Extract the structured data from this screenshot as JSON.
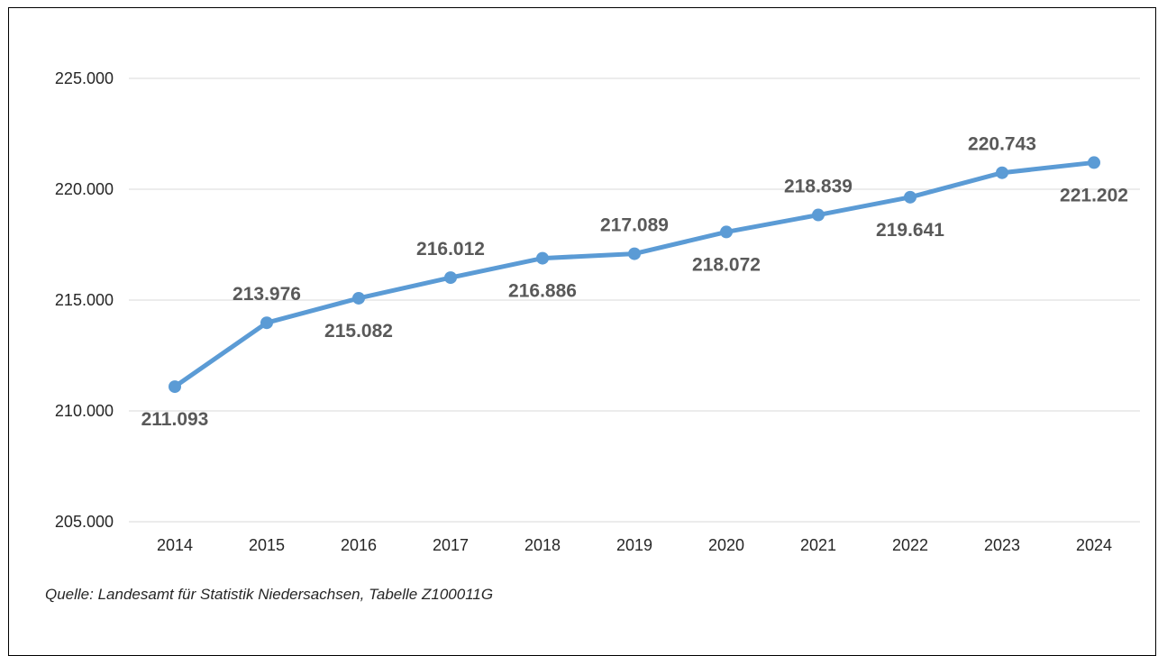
{
  "chart_data": {
    "type": "line",
    "categories": [
      "2014",
      "2015",
      "2016",
      "2017",
      "2018",
      "2019",
      "2020",
      "2021",
      "2022",
      "2023",
      "2024"
    ],
    "values": [
      211093,
      213976,
      215082,
      216012,
      216886,
      217089,
      218072,
      218839,
      219641,
      220743,
      221202
    ],
    "value_labels": [
      "211.093",
      "213.976",
      "215.082",
      "216.012",
      "216.886",
      "217.089",
      "218.072",
      "218.839",
      "219.641",
      "220.743",
      "221.202"
    ],
    "label_positions": [
      "below",
      "above",
      "below",
      "above",
      "below",
      "above",
      "below",
      "above",
      "below",
      "above",
      "below"
    ],
    "ylim": [
      205000,
      225000
    ],
    "yticks": [
      205000,
      210000,
      215000,
      220000,
      225000
    ],
    "ytick_labels": [
      "205.000",
      "210.000",
      "215.000",
      "220.000",
      "225.000"
    ],
    "title": "",
    "xlabel": "",
    "ylabel": "",
    "grid": true,
    "legend": "none",
    "line_color": "#5b9bd5",
    "gridline_color": "#d9d9d9",
    "label_color": "#595959"
  },
  "source_note": "Quelle: Landesamt für Statistik Niedersachsen, Tabelle Z100011G"
}
